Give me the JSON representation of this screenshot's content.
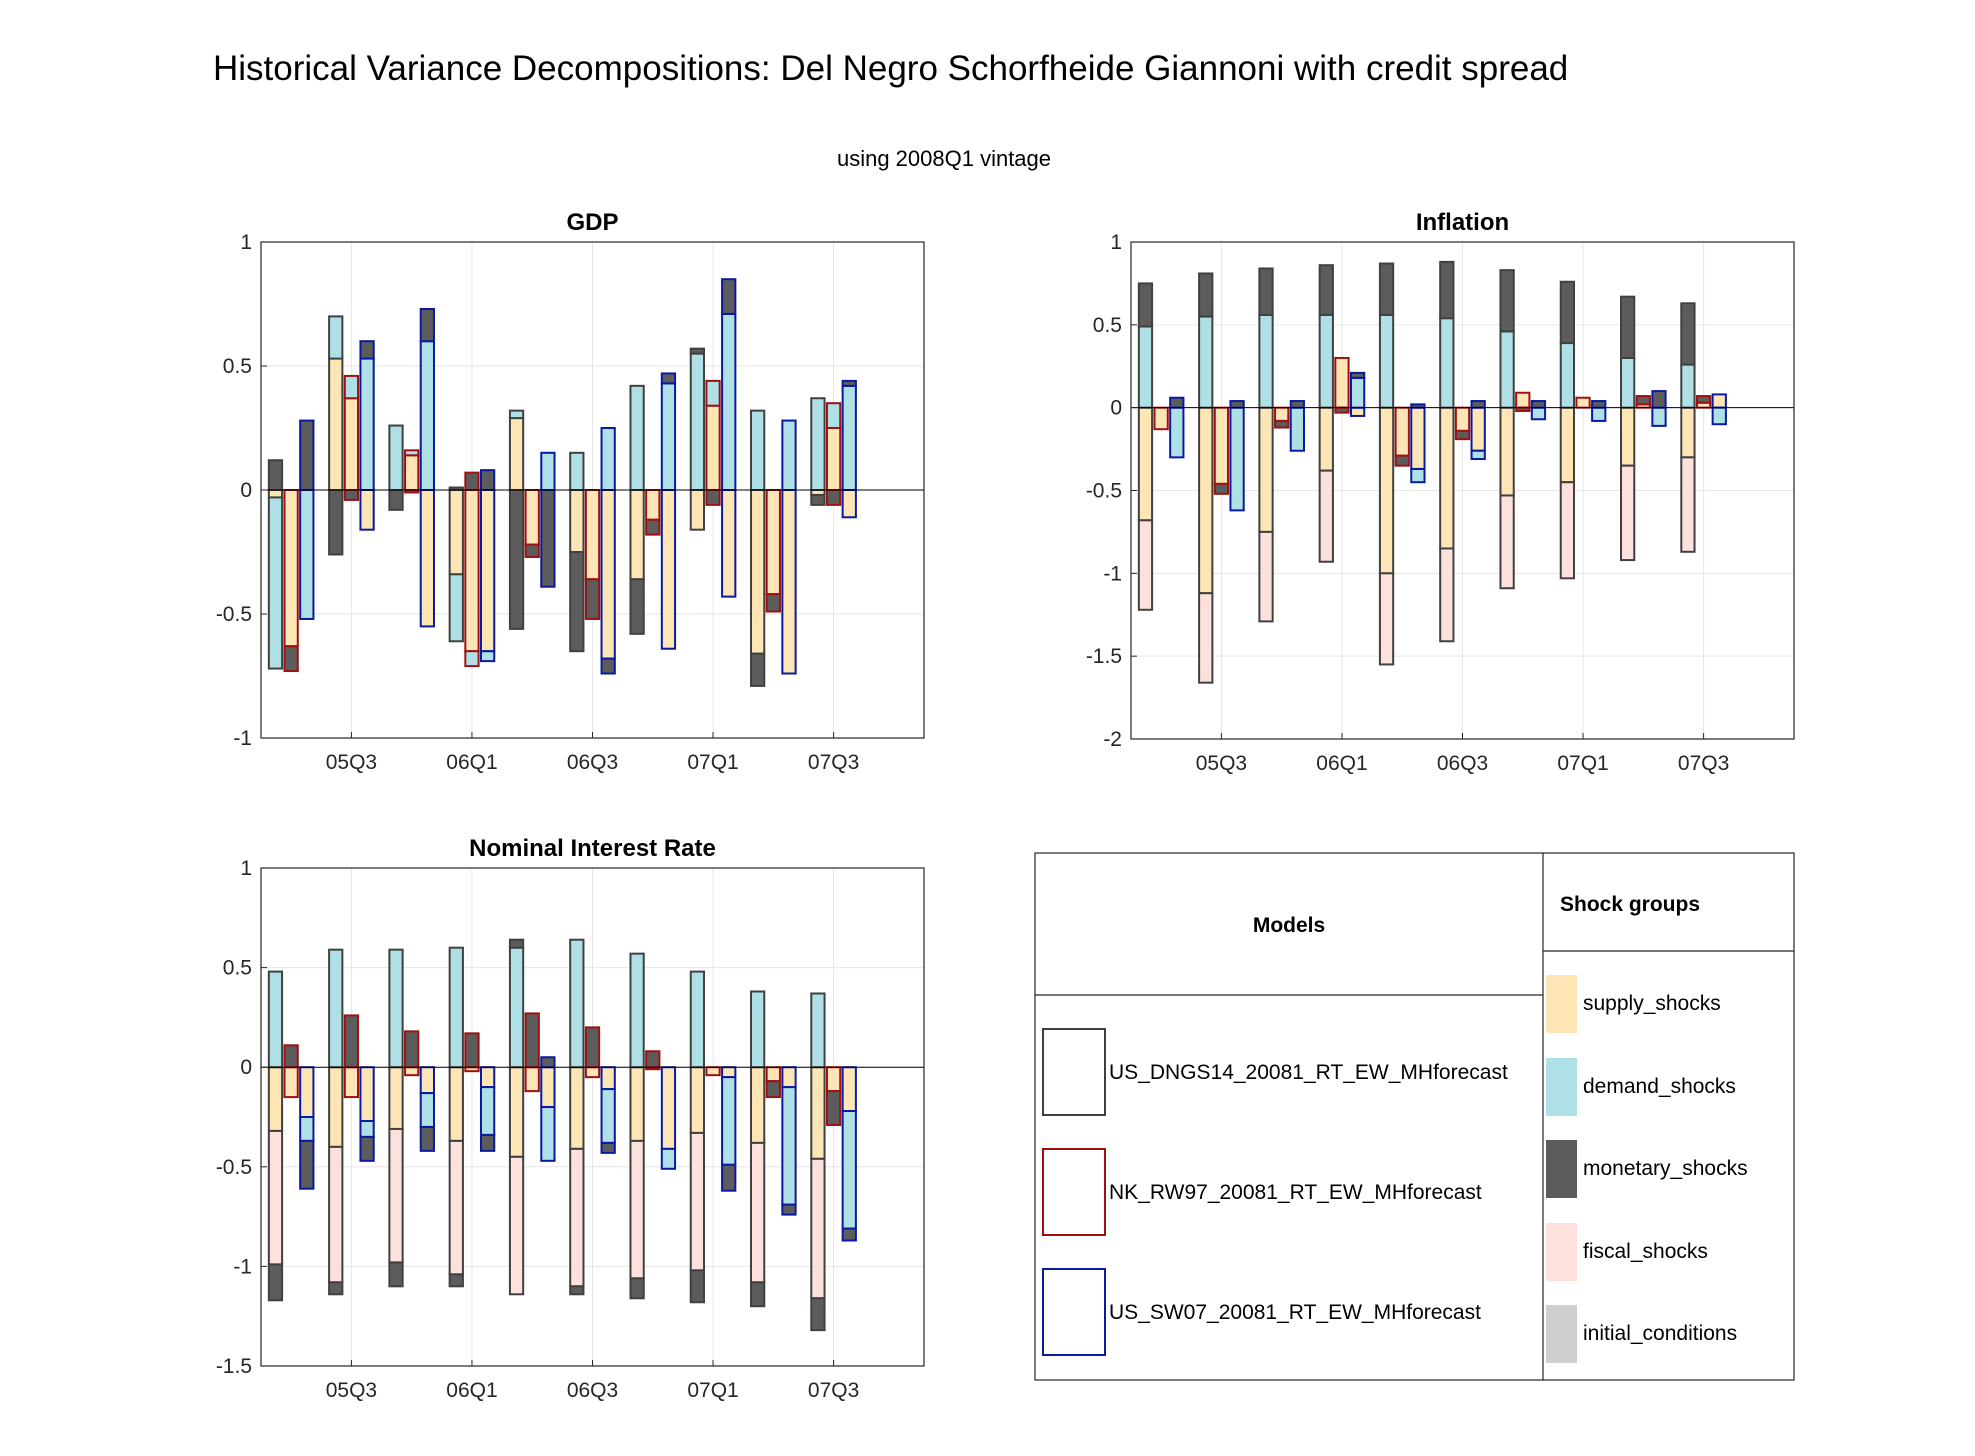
{
  "figure": {
    "title": "Historical Variance Decompositions: Del Negro Schorfheide Giannoni with credit spread",
    "subtitle": "using 2008Q1 vintage"
  },
  "colors": {
    "shocks": {
      "supply_shocks": "#fde5b5",
      "demand_shocks": "#aee0e6",
      "monetary_shocks": "#5c5c5c",
      "fiscal_shocks": "#fde1dd",
      "initial_conditions": "#cfcfcf"
    },
    "models": {
      "US_DNGS14_20081_RT_EW_MHforecast": "#404040",
      "NK_RW97_20081_RT_EW_MHforecast": "#a01010",
      "US_SW07_20081_RT_EW_MHforecast": "#0a1aa0"
    },
    "grid": "#e6e6e6",
    "axis": "#262626"
  },
  "legend": {
    "models_header": "Models",
    "shock_header": "Shock groups",
    "models": [
      "US_DNGS14_20081_RT_EW_MHforecast",
      "NK_RW97_20081_RT_EW_MHforecast",
      "US_SW07_20081_RT_EW_MHforecast"
    ],
    "shocks": [
      "supply_shocks",
      "demand_shocks",
      "monetary_shocks",
      "fiscal_shocks",
      "initial_conditions"
    ]
  },
  "chart_data": [
    {
      "type": "bar",
      "stacked": true,
      "title": "GDP",
      "x_tick_labels": [
        "05Q3",
        "06Q1",
        "06Q3",
        "07Q1",
        "07Q3"
      ],
      "x_tick_periods": [
        2,
        4,
        6,
        8,
        10
      ],
      "periods": 11,
      "ylim": [
        -1,
        1
      ],
      "yticks": [
        -1,
        -0.5,
        0,
        0.5,
        1
      ],
      "ytick_labels": [
        "-1",
        "-0.5",
        "0",
        "0.5",
        "1"
      ],
      "grid": true,
      "bars": [
        [
          {
            "supply_shocks": -0.03,
            "demand_shocks": -0.69,
            "monetary_shocks": 0.12
          },
          {
            "supply_shocks": -0.63,
            "demand_shocks": 0,
            "monetary_shocks": -0.1,
            "extra": 0.1
          },
          {
            "supply_shocks": 0,
            "demand_shocks": -0.52,
            "monetary_shocks": 0.28
          }
        ],
        [
          {
            "supply_shocks": 0.53,
            "demand_shocks": 0.17,
            "monetary_shocks": -0.26
          },
          {
            "supply_shocks": 0.37,
            "demand_shocks": 0.09,
            "monetary_shocks": -0.04
          },
          {
            "supply_shocks": -0.16,
            "demand_shocks": 0.53,
            "monetary_shocks": 0.07
          }
        ],
        [
          {
            "supply_shocks": 0,
            "demand_shocks": 0.26,
            "monetary_shocks": -0.08
          },
          {
            "supply_shocks": 0.14,
            "demand_shocks": 0.02,
            "monetary_shocks": -0.01
          },
          {
            "supply_shocks": -0.55,
            "demand_shocks": 0.6,
            "monetary_shocks": 0.13
          }
        ],
        [
          {
            "supply_shocks": -0.34,
            "demand_shocks": -0.27,
            "monetary_shocks": 0.01
          },
          {
            "supply_shocks": -0.65,
            "demand_shocks": -0.06,
            "monetary_shocks": 0.07
          },
          {
            "supply_shocks": -0.65,
            "demand_shocks": -0.04,
            "monetary_shocks": 0.08
          }
        ],
        [
          {
            "supply_shocks": 0.29,
            "demand_shocks": 0.03,
            "monetary_shocks": -0.56
          },
          {
            "supply_shocks": -0.22,
            "demand_shocks": 0,
            "monetary_shocks": -0.05
          },
          {
            "supply_shocks": 0,
            "demand_shocks": 0.15,
            "monetary_shocks": -0.39
          }
        ],
        [
          {
            "supply_shocks": -0.25,
            "demand_shocks": 0.15,
            "monetary_shocks": -0.4
          },
          {
            "supply_shocks": -0.36,
            "demand_shocks": 0,
            "monetary_shocks": -0.16
          },
          {
            "supply_shocks": -0.68,
            "demand_shocks": 0.25,
            "monetary_shocks": -0.06
          }
        ],
        [
          {
            "supply_shocks": -0.36,
            "demand_shocks": 0.42,
            "monetary_shocks": -0.22
          },
          {
            "supply_shocks": -0.12,
            "demand_shocks": 0,
            "monetary_shocks": -0.06
          },
          {
            "supply_shocks": -0.64,
            "demand_shocks": 0.43,
            "monetary_shocks": 0.04
          }
        ],
        [
          {
            "supply_shocks": -0.16,
            "demand_shocks": 0.55,
            "monetary_shocks": 0.02
          },
          {
            "supply_shocks": 0.34,
            "demand_shocks": 0.1,
            "monetary_shocks": -0.06
          },
          {
            "supply_shocks": -0.43,
            "demand_shocks": 0.71,
            "monetary_shocks": 0.14
          }
        ],
        [
          {
            "supply_shocks": -0.66,
            "demand_shocks": 0.32,
            "monetary_shocks": -0.13
          },
          {
            "supply_shocks": -0.42,
            "demand_shocks": 0,
            "monetary_shocks": -0.07
          },
          {
            "supply_shocks": -0.74,
            "demand_shocks": 0.28,
            "monetary_shocks": 0
          }
        ],
        [
          {
            "supply_shocks": -0.02,
            "demand_shocks": 0.37,
            "monetary_shocks": -0.04
          },
          {
            "supply_shocks": 0.25,
            "demand_shocks": 0.1,
            "monetary_shocks": -0.06
          },
          {
            "supply_shocks": -0.11,
            "demand_shocks": 0.42,
            "monetary_shocks": 0.02
          }
        ]
      ]
    },
    {
      "type": "bar",
      "stacked": true,
      "title": "Inflation",
      "x_tick_labels": [
        "05Q3",
        "06Q1",
        "06Q3",
        "07Q1",
        "07Q3"
      ],
      "x_tick_periods": [
        2,
        4,
        6,
        8,
        10
      ],
      "periods": 11,
      "ylim": [
        -2,
        1
      ],
      "yticks": [
        -2,
        -1.5,
        -1,
        -0.5,
        0,
        0.5,
        1
      ],
      "ytick_labels": [
        "-2",
        "-1.5",
        "-1",
        "-0.5",
        "0",
        "0.5",
        "1"
      ],
      "grid": true,
      "bars": [
        [
          {
            "supply_shocks": -0.68,
            "fiscal_shocks": -0.54,
            "demand_shocks": 0.49,
            "monetary_shocks": 0.26
          },
          {
            "supply_shocks": -0.13,
            "monetary_shocks": 0
          },
          {
            "supply_shocks": 0,
            "demand_shocks": -0.3,
            "monetary_shocks": 0.06
          }
        ],
        [
          {
            "supply_shocks": -1.12,
            "fiscal_shocks": -0.54,
            "demand_shocks": 0.55,
            "monetary_shocks": 0.26
          },
          {
            "supply_shocks": -0.46,
            "monetary_shocks": -0.06
          },
          {
            "supply_shocks": 0,
            "demand_shocks": -0.62,
            "monetary_shocks": 0.04
          }
        ],
        [
          {
            "supply_shocks": -0.75,
            "fiscal_shocks": -0.54,
            "demand_shocks": 0.56,
            "monetary_shocks": 0.28
          },
          {
            "supply_shocks": -0.08,
            "monetary_shocks": -0.04
          },
          {
            "supply_shocks": 0,
            "demand_shocks": -0.26,
            "monetary_shocks": 0.04
          }
        ],
        [
          {
            "supply_shocks": -0.38,
            "fiscal_shocks": -0.55,
            "demand_shocks": 0.56,
            "monetary_shocks": 0.3
          },
          {
            "supply_shocks": 0.3,
            "monetary_shocks": -0.03
          },
          {
            "supply_shocks": -0.05,
            "demand_shocks": 0.18,
            "monetary_shocks": 0.03
          }
        ],
        [
          {
            "supply_shocks": -1.0,
            "fiscal_shocks": -0.55,
            "demand_shocks": 0.56,
            "monetary_shocks": 0.31
          },
          {
            "supply_shocks": -0.29,
            "monetary_shocks": -0.06
          },
          {
            "supply_shocks": -0.37,
            "demand_shocks": -0.08,
            "monetary_shocks": 0.02
          }
        ],
        [
          {
            "supply_shocks": -0.85,
            "fiscal_shocks": -0.56,
            "demand_shocks": 0.54,
            "monetary_shocks": 0.34
          },
          {
            "supply_shocks": -0.14,
            "monetary_shocks": -0.05
          },
          {
            "supply_shocks": -0.26,
            "demand_shocks": -0.05,
            "monetary_shocks": 0.04
          }
        ],
        [
          {
            "supply_shocks": -0.53,
            "fiscal_shocks": -0.56,
            "demand_shocks": 0.46,
            "monetary_shocks": 0.37
          },
          {
            "supply_shocks": 0.09,
            "monetary_shocks": -0.02
          },
          {
            "supply_shocks": 0,
            "demand_shocks": -0.07,
            "monetary_shocks": 0.04
          }
        ],
        [
          {
            "supply_shocks": -0.45,
            "fiscal_shocks": -0.58,
            "demand_shocks": 0.39,
            "monetary_shocks": 0.37
          },
          {
            "supply_shocks": 0.06,
            "monetary_shocks": 0
          },
          {
            "supply_shocks": 0,
            "demand_shocks": -0.08,
            "monetary_shocks": 0.04
          }
        ],
        [
          {
            "supply_shocks": -0.35,
            "fiscal_shocks": -0.57,
            "demand_shocks": 0.3,
            "monetary_shocks": 0.37
          },
          {
            "supply_shocks": 0.02,
            "monetary_shocks": 0.05
          },
          {
            "supply_shocks": 0,
            "demand_shocks": -0.11,
            "monetary_shocks": 0.1
          }
        ],
        [
          {
            "supply_shocks": -0.3,
            "fiscal_shocks": -0.57,
            "demand_shocks": 0.26,
            "monetary_shocks": 0.37
          },
          {
            "supply_shocks": 0.03,
            "monetary_shocks": 0.04
          },
          {
            "supply_shocks": 0.08,
            "demand_shocks": -0.1,
            "monetary_shocks": 0
          }
        ]
      ]
    },
    {
      "type": "bar",
      "stacked": true,
      "title": "Nominal Interest Rate",
      "x_tick_labels": [
        "05Q3",
        "06Q1",
        "06Q3",
        "07Q1",
        "07Q3"
      ],
      "x_tick_periods": [
        2,
        4,
        6,
        8,
        10
      ],
      "periods": 11,
      "ylim": [
        -1.5,
        1
      ],
      "yticks": [
        -1.5,
        -1,
        -0.5,
        0,
        0.5,
        1
      ],
      "ytick_labels": [
        "-1.5",
        "-1",
        "-0.5",
        "0",
        "0.5",
        "1"
      ],
      "grid": true,
      "bars": [
        [
          {
            "supply_shocks": -0.32,
            "monetary_shocks": -0.18,
            "fiscal_shocks": -0.67,
            "demand_shocks": 0.48
          },
          {
            "supply_shocks": -0.15,
            "monetary_shocks": 0.11
          },
          {
            "supply_shocks": -0.25,
            "demand_shocks": -0.12,
            "monetary_shocks": -0.24
          }
        ],
        [
          {
            "supply_shocks": -0.4,
            "monetary_shocks": -0.06,
            "fiscal_shocks": -0.68,
            "demand_shocks": 0.59
          },
          {
            "supply_shocks": -0.15,
            "monetary_shocks": 0.26
          },
          {
            "supply_shocks": -0.27,
            "demand_shocks": -0.08,
            "monetary_shocks": -0.12
          }
        ],
        [
          {
            "supply_shocks": -0.31,
            "monetary_shocks": -0.12,
            "fiscal_shocks": -0.67,
            "demand_shocks": 0.59
          },
          {
            "supply_shocks": -0.04,
            "monetary_shocks": 0.18
          },
          {
            "supply_shocks": -0.13,
            "demand_shocks": -0.17,
            "monetary_shocks": -0.12
          }
        ],
        [
          {
            "supply_shocks": -0.37,
            "monetary_shocks": -0.06,
            "fiscal_shocks": -0.67,
            "demand_shocks": 0.6
          },
          {
            "supply_shocks": -0.02,
            "monetary_shocks": 0.17
          },
          {
            "supply_shocks": -0.1,
            "demand_shocks": -0.24,
            "monetary_shocks": -0.08
          }
        ],
        [
          {
            "supply_shocks": -0.45,
            "monetary_shocks": 0.04,
            "fiscal_shocks": -0.69,
            "demand_shocks": 0.6
          },
          {
            "supply_shocks": -0.12,
            "monetary_shocks": 0.27
          },
          {
            "supply_shocks": -0.2,
            "demand_shocks": -0.27,
            "monetary_shocks": 0.05
          }
        ],
        [
          {
            "supply_shocks": -0.41,
            "monetary_shocks": -0.04,
            "fiscal_shocks": -0.69,
            "demand_shocks": 0.64
          },
          {
            "supply_shocks": -0.05,
            "monetary_shocks": 0.2
          },
          {
            "supply_shocks": -0.11,
            "demand_shocks": -0.27,
            "monetary_shocks": -0.05
          }
        ],
        [
          {
            "supply_shocks": -0.37,
            "monetary_shocks": -0.1,
            "fiscal_shocks": -0.69,
            "demand_shocks": 0.57
          },
          {
            "supply_shocks": -0.01,
            "monetary_shocks": 0.08
          },
          {
            "supply_shocks": -0.41,
            "demand_shocks": -0.1,
            "monetary_shocks": 0
          }
        ],
        [
          {
            "supply_shocks": -0.33,
            "monetary_shocks": -0.16,
            "fiscal_shocks": -0.69,
            "demand_shocks": 0.48
          },
          {
            "supply_shocks": -0.04,
            "monetary_shocks": 0
          },
          {
            "supply_shocks": -0.05,
            "demand_shocks": -0.44,
            "monetary_shocks": -0.13
          }
        ],
        [
          {
            "supply_shocks": -0.38,
            "monetary_shocks": -0.12,
            "fiscal_shocks": -0.7,
            "demand_shocks": 0.38
          },
          {
            "supply_shocks": -0.07,
            "monetary_shocks": -0.08
          },
          {
            "supply_shocks": -0.1,
            "demand_shocks": -0.59,
            "monetary_shocks": -0.05
          }
        ],
        [
          {
            "supply_shocks": -0.46,
            "monetary_shocks": -0.16,
            "fiscal_shocks": -0.7,
            "demand_shocks": 0.37
          },
          {
            "supply_shocks": -0.12,
            "monetary_shocks": -0.17
          },
          {
            "supply_shocks": -0.22,
            "demand_shocks": -0.59,
            "monetary_shocks": -0.06
          }
        ]
      ]
    }
  ]
}
